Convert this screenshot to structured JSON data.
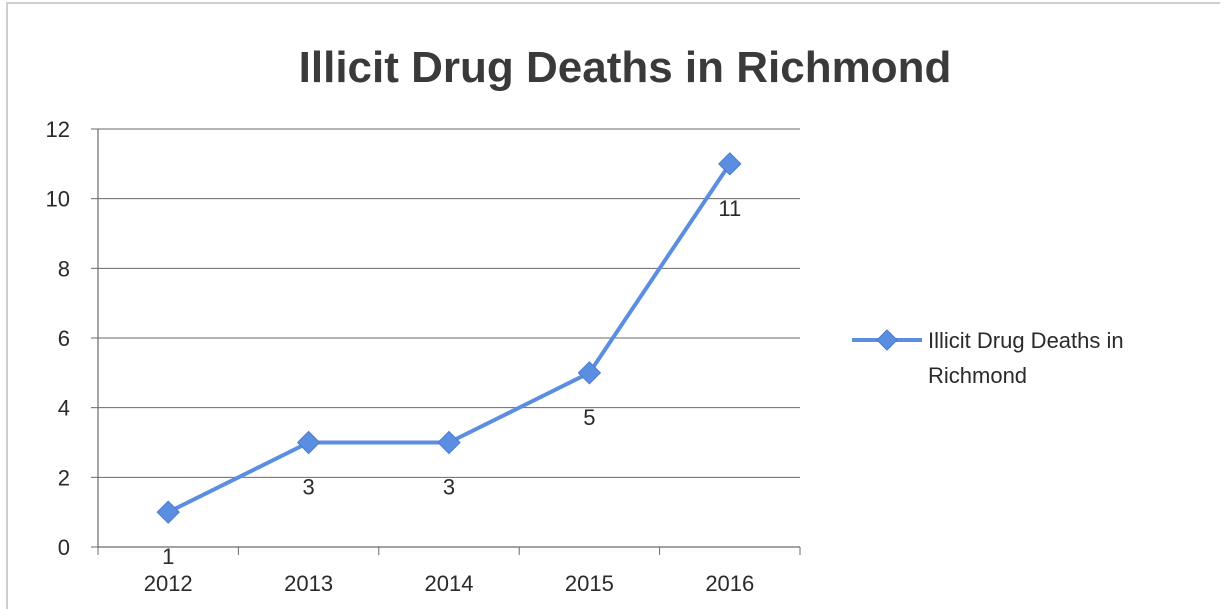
{
  "chart_data": {
    "type": "line",
    "title": "Illicit Drug Deaths in Richmond",
    "categories": [
      "2012",
      "2013",
      "2014",
      "2015",
      "2016"
    ],
    "series": [
      {
        "name": "Illicit Drug Deaths in Richmond",
        "legend_lines": [
          "Illicit Drug Deaths in",
          "Richmond"
        ],
        "values": [
          1,
          3,
          3,
          5,
          11
        ],
        "data_labels": [
          "1",
          "3",
          "3",
          "5",
          "11"
        ],
        "color": "#5b8ee0"
      }
    ],
    "y_ticks": [
      "0",
      "2",
      "4",
      "6",
      "8",
      "10",
      "12"
    ],
    "ylim": [
      0,
      12
    ],
    "grid": true,
    "legend": "right",
    "xlabel": "",
    "ylabel": ""
  }
}
